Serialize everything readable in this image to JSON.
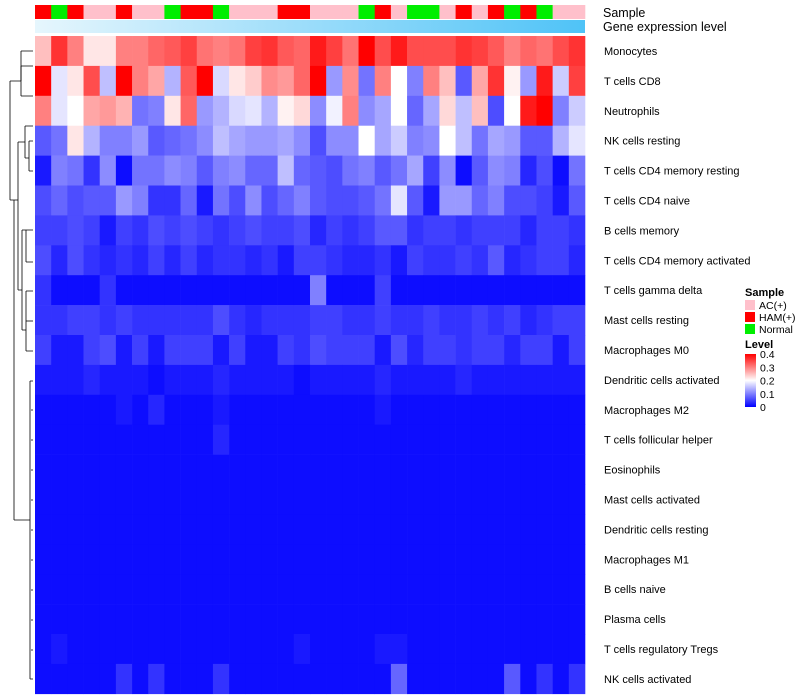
{
  "chart_data": {
    "type": "heatmap",
    "title": "",
    "annotation_rows": [
      "Sample",
      "Gene expression level"
    ],
    "rows": [
      "Monocytes",
      "T cells CD8",
      "Neutrophils",
      "NK cells resting",
      "T cells CD4 memory resting",
      "T cells CD4 naive",
      "B cells memory",
      "T cells CD4 memory activated",
      "T cells gamma delta",
      "Mast cells resting",
      "Macrophages M0",
      "Dendritic cells activated",
      "Macrophages M2",
      "T cells follicular helper",
      "Eosinophils",
      "Mast cells activated",
      "Dendritic cells resting",
      "Macrophages M1",
      "B cells naive",
      "Plasma cells",
      "T cells regulatory  Tregs",
      "NK cells activated"
    ],
    "sample_groups": [
      "HAM(+)",
      "Normal",
      "HAM(+)",
      "AC(+)",
      "AC(+)",
      "HAM(+)",
      "AC(+)",
      "AC(+)",
      "Normal",
      "HAM(+)",
      "HAM(+)",
      "Normal",
      "AC(+)",
      "AC(+)",
      "AC(+)",
      "HAM(+)",
      "HAM(+)",
      "AC(+)",
      "AC(+)",
      "AC(+)",
      "Normal",
      "HAM(+)",
      "AC(+)",
      "Normal",
      "Normal",
      "AC(+)",
      "HAM(+)",
      "AC(+)",
      "HAM(+)",
      "Normal",
      "HAM(+)",
      "Normal",
      "AC(+)",
      "AC(+)"
    ],
    "values": [
      [
        0.25,
        0.36,
        0.3,
        0.22,
        0.22,
        0.3,
        0.3,
        0.32,
        0.33,
        0.35,
        0.31,
        0.3,
        0.31,
        0.35,
        0.36,
        0.33,
        0.32,
        0.38,
        0.35,
        0.31,
        0.4,
        0.34,
        0.38,
        0.34,
        0.34,
        0.34,
        0.36,
        0.35,
        0.33,
        0.3,
        0.32,
        0.31,
        0.34,
        0.36
      ],
      [
        0.4,
        0.18,
        0.22,
        0.34,
        0.15,
        0.4,
        0.3,
        0.27,
        0.14,
        0.33,
        0.4,
        0.17,
        0.22,
        0.24,
        0.29,
        0.28,
        0.32,
        0.4,
        0.12,
        0.29,
        0.09,
        0.3,
        0.2,
        0.1,
        0.3,
        0.25,
        0.07,
        0.27,
        0.36,
        0.21,
        0.12,
        0.38,
        0.16,
        0.35
      ],
      [
        0.3,
        0.18,
        0.2,
        0.27,
        0.28,
        0.26,
        0.09,
        0.1,
        0.22,
        0.32,
        0.12,
        0.14,
        0.17,
        0.18,
        0.14,
        0.21,
        0.23,
        0.11,
        0.19,
        0.3,
        0.11,
        0.13,
        0.2,
        0.08,
        0.13,
        0.23,
        0.15,
        0.25,
        0.06,
        0.2,
        0.38,
        0.4,
        0.1,
        0.16
      ],
      [
        0.07,
        0.09,
        0.22,
        0.14,
        0.1,
        0.1,
        0.12,
        0.07,
        0.08,
        0.09,
        0.11,
        0.15,
        0.13,
        0.12,
        0.12,
        0.13,
        0.11,
        0.06,
        0.11,
        0.11,
        0.2,
        0.13,
        0.16,
        0.1,
        0.11,
        0.2,
        0.15,
        0.09,
        0.13,
        0.12,
        0.07,
        0.07,
        0.14,
        0.18
      ],
      [
        0.02,
        0.1,
        0.09,
        0.04,
        0.11,
        0.01,
        0.09,
        0.09,
        0.11,
        0.1,
        0.07,
        0.1,
        0.11,
        0.08,
        0.08,
        0.15,
        0.08,
        0.07,
        0.06,
        0.09,
        0.1,
        0.07,
        0.09,
        0.13,
        0.05,
        0.11,
        0.01,
        0.07,
        0.11,
        0.1,
        0.03,
        0.06,
        0.01,
        0.09
      ],
      [
        0.06,
        0.08,
        0.06,
        0.07,
        0.07,
        0.12,
        0.1,
        0.04,
        0.04,
        0.08,
        0.02,
        0.09,
        0.06,
        0.11,
        0.06,
        0.08,
        0.1,
        0.07,
        0.06,
        0.06,
        0.07,
        0.09,
        0.18,
        0.07,
        0.02,
        0.12,
        0.12,
        0.08,
        0.1,
        0.06,
        0.06,
        0.05,
        0.02,
        0.07
      ],
      [
        0.05,
        0.05,
        0.06,
        0.05,
        0.02,
        0.05,
        0.04,
        0.06,
        0.05,
        0.06,
        0.05,
        0.04,
        0.05,
        0.06,
        0.05,
        0.05,
        0.06,
        0.03,
        0.05,
        0.04,
        0.05,
        0.07,
        0.07,
        0.04,
        0.05,
        0.05,
        0.04,
        0.05,
        0.05,
        0.05,
        0.03,
        0.05,
        0.05,
        0.04
      ],
      [
        0.06,
        0.03,
        0.06,
        0.04,
        0.03,
        0.04,
        0.03,
        0.05,
        0.03,
        0.05,
        0.03,
        0.04,
        0.04,
        0.03,
        0.04,
        0.02,
        0.05,
        0.05,
        0.04,
        0.03,
        0.03,
        0.04,
        0.02,
        0.05,
        0.04,
        0.04,
        0.05,
        0.04,
        0.07,
        0.03,
        0.04,
        0.05,
        0.05,
        0.03
      ],
      [
        0.04,
        0.01,
        0.01,
        0.01,
        0.04,
        0.01,
        0.01,
        0.01,
        0.01,
        0.01,
        0.01,
        0.01,
        0.01,
        0.01,
        0.01,
        0.01,
        0.01,
        0.1,
        0.01,
        0.01,
        0.01,
        0.05,
        0.01,
        0.01,
        0.01,
        0.01,
        0.01,
        0.01,
        0.01,
        0.01,
        0.01,
        0.01,
        0.01,
        0.01
      ],
      [
        0.04,
        0.04,
        0.05,
        0.05,
        0.04,
        0.05,
        0.04,
        0.04,
        0.04,
        0.04,
        0.04,
        0.06,
        0.04,
        0.03,
        0.04,
        0.04,
        0.04,
        0.05,
        0.05,
        0.04,
        0.04,
        0.05,
        0.04,
        0.04,
        0.05,
        0.04,
        0.04,
        0.05,
        0.04,
        0.05,
        0.03,
        0.04,
        0.05,
        0.05
      ],
      [
        0.05,
        0.02,
        0.02,
        0.05,
        0.06,
        0.02,
        0.05,
        0.02,
        0.05,
        0.05,
        0.05,
        0.02,
        0.05,
        0.02,
        0.02,
        0.05,
        0.04,
        0.06,
        0.05,
        0.05,
        0.05,
        0.02,
        0.06,
        0.03,
        0.05,
        0.05,
        0.04,
        0.05,
        0.05,
        0.03,
        0.05,
        0.05,
        0.02,
        0.05
      ],
      [
        0.02,
        0.02,
        0.02,
        0.03,
        0.02,
        0.02,
        0.02,
        0.01,
        0.02,
        0.02,
        0.02,
        0.03,
        0.02,
        0.02,
        0.02,
        0.02,
        0.01,
        0.02,
        0.02,
        0.02,
        0.02,
        0.03,
        0.02,
        0.02,
        0.02,
        0.02,
        0.03,
        0.02,
        0.02,
        0.02,
        0.02,
        0.02,
        0.02,
        0.02
      ],
      [
        0.01,
        0.01,
        0.01,
        0.01,
        0.01,
        0.02,
        0.01,
        0.03,
        0.01,
        0.01,
        0.01,
        0.02,
        0.01,
        0.01,
        0.01,
        0.01,
        0.01,
        0.01,
        0.01,
        0.01,
        0.01,
        0.02,
        0.01,
        0.01,
        0.01,
        0.01,
        0.01,
        0.01,
        0.01,
        0.01,
        0.01,
        0.01,
        0.01,
        0.01
      ],
      [
        0.01,
        0.01,
        0.01,
        0.01,
        0.01,
        0.01,
        0.01,
        0.01,
        0.01,
        0.01,
        0.01,
        0.03,
        0.01,
        0.01,
        0.01,
        0.01,
        0.01,
        0.01,
        0.01,
        0.01,
        0.01,
        0.01,
        0.01,
        0.01,
        0.01,
        0.01,
        0.01,
        0.01,
        0.01,
        0.01,
        0.01,
        0.01,
        0.01,
        0.01
      ],
      [
        0.01,
        0.01,
        0.01,
        0.01,
        0.01,
        0.01,
        0.01,
        0.01,
        0.01,
        0.01,
        0.01,
        0.01,
        0.01,
        0.01,
        0.01,
        0.01,
        0.01,
        0.01,
        0.01,
        0.01,
        0.01,
        0.01,
        0.01,
        0.01,
        0.01,
        0.01,
        0.01,
        0.01,
        0.01,
        0.01,
        0.01,
        0.01,
        0.01,
        0.01
      ],
      [
        0.01,
        0.01,
        0.01,
        0.01,
        0.01,
        0.01,
        0.01,
        0.01,
        0.01,
        0.01,
        0.01,
        0.01,
        0.01,
        0.01,
        0.01,
        0.01,
        0.01,
        0.01,
        0.01,
        0.01,
        0.01,
        0.01,
        0.01,
        0.01,
        0.01,
        0.01,
        0.01,
        0.01,
        0.01,
        0.01,
        0.01,
        0.01,
        0.01,
        0.01
      ],
      [
        0.01,
        0.01,
        0.01,
        0.01,
        0.01,
        0.01,
        0.01,
        0.01,
        0.01,
        0.01,
        0.01,
        0.01,
        0.01,
        0.01,
        0.01,
        0.01,
        0.01,
        0.01,
        0.01,
        0.01,
        0.01,
        0.01,
        0.01,
        0.01,
        0.01,
        0.01,
        0.01,
        0.01,
        0.01,
        0.01,
        0.01,
        0.01,
        0.01,
        0.01
      ],
      [
        0.01,
        0.01,
        0.01,
        0.01,
        0.01,
        0.01,
        0.01,
        0.01,
        0.01,
        0.01,
        0.01,
        0.01,
        0.01,
        0.01,
        0.01,
        0.01,
        0.01,
        0.01,
        0.01,
        0.01,
        0.01,
        0.01,
        0.01,
        0.01,
        0.01,
        0.01,
        0.01,
        0.01,
        0.01,
        0.01,
        0.01,
        0.01,
        0.01,
        0.01
      ],
      [
        0.01,
        0.01,
        0.01,
        0.01,
        0.01,
        0.01,
        0.01,
        0.01,
        0.01,
        0.01,
        0.01,
        0.01,
        0.01,
        0.01,
        0.01,
        0.01,
        0.01,
        0.01,
        0.01,
        0.01,
        0.01,
        0.01,
        0.01,
        0.01,
        0.01,
        0.01,
        0.01,
        0.01,
        0.01,
        0.01,
        0.01,
        0.01,
        0.01,
        0.01
      ],
      [
        0.01,
        0.01,
        0.01,
        0.01,
        0.01,
        0.01,
        0.01,
        0.01,
        0.01,
        0.01,
        0.01,
        0.01,
        0.01,
        0.01,
        0.01,
        0.01,
        0.01,
        0.01,
        0.01,
        0.01,
        0.01,
        0.01,
        0.01,
        0.01,
        0.01,
        0.01,
        0.01,
        0.01,
        0.01,
        0.01,
        0.01,
        0.01,
        0.01,
        0.01
      ],
      [
        0.01,
        0.02,
        0.01,
        0.01,
        0.01,
        0.01,
        0.01,
        0.01,
        0.01,
        0.01,
        0.01,
        0.01,
        0.01,
        0.01,
        0.01,
        0.01,
        0.02,
        0.01,
        0.01,
        0.01,
        0.01,
        0.02,
        0.02,
        0.01,
        0.01,
        0.01,
        0.01,
        0.01,
        0.01,
        0.01,
        0.01,
        0.01,
        0.01,
        0.01
      ],
      [
        0.01,
        0.01,
        0.01,
        0.01,
        0.01,
        0.04,
        0.01,
        0.04,
        0.01,
        0.01,
        0.01,
        0.04,
        0.01,
        0.01,
        0.01,
        0.01,
        0.01,
        0.01,
        0.01,
        0.01,
        0.01,
        0.01,
        0.08,
        0.01,
        0.01,
        0.01,
        0.01,
        0.01,
        0.01,
        0.07,
        0.01,
        0.04,
        0.01,
        0.04
      ]
    ],
    "color_scale": {
      "min": 0,
      "mid": 0.2,
      "max": 0.4,
      "low": "#0000ff",
      "mid_color": "#ffffff",
      "high": "#ff0000"
    },
    "legend_sample": {
      "title": "Sample",
      "items": [
        {
          "label": "AC(+)",
          "color": "#ffc0cb"
        },
        {
          "label": "HAM(+)",
          "color": "#ff0000"
        },
        {
          "label": "Normal",
          "color": "#00ee00"
        }
      ]
    },
    "legend_level": {
      "title": "Level",
      "ticks": [
        0,
        0.1,
        0.2,
        0.3,
        0.4
      ],
      "tick_labels": [
        "0",
        "0.1",
        "0.2",
        "0.3",
        "0.4"
      ]
    },
    "gene_expression_bar": {
      "from": "#e6f6fd",
      "to": "#4fc3f7"
    }
  }
}
